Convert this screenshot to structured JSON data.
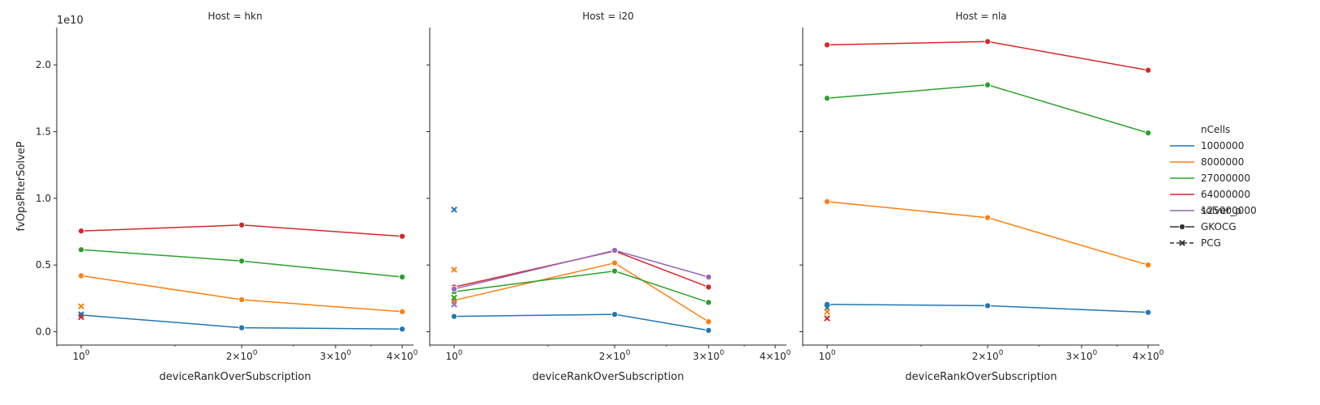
{
  "figure": {
    "y_axis_label": "fvOpsPIterSolveP",
    "y_offset_text": "1e10",
    "legend_title_hue": "nCells",
    "legend_title_style": "solver_p"
  },
  "colors": {
    "1000000": "#1f77b4",
    "8000000": "#ff7f0e",
    "27000000": "#2ca02c",
    "64000000": "#d62728",
    "125000000": "#9467bd",
    "axis": "#262626"
  },
  "legend": {
    "hue_entries": [
      "1000000",
      "8000000",
      "27000000",
      "64000000",
      "125000000"
    ],
    "style_entries": [
      "GKOCG",
      "PCG"
    ]
  },
  "chart_data": [
    {
      "type": "line",
      "title": "Host = hkn",
      "xlabel": "deviceRankOverSubscription",
      "ylabel": "fvOpsPIterSolveP",
      "x_scale": "log",
      "xlim": [
        0.9,
        4.2
      ],
      "ylim": [
        -1000000000.0,
        22800000000.0
      ],
      "x_tick_labels": [
        "10^0",
        "2×10^0",
        "3×10^0",
        "4×10^0"
      ],
      "y_tick_labels": [
        "0.0",
        "0.5",
        "1.0",
        "1.5",
        "2.0"
      ],
      "series": [
        {
          "name": "1000000",
          "marker": "GKOCG",
          "x": [
            1,
            2,
            4
          ],
          "values": [
            1250000000.0,
            300000000.0,
            200000000.0
          ]
        },
        {
          "name": "8000000",
          "marker": "GKOCG",
          "x": [
            1,
            2,
            4
          ],
          "values": [
            4200000000.0,
            2400000000.0,
            1500000000.0
          ]
        },
        {
          "name": "27000000",
          "marker": "GKOCG",
          "x": [
            1,
            2,
            4
          ],
          "values": [
            6150000000.0,
            5300000000.0,
            4100000000.0
          ]
        },
        {
          "name": "64000000",
          "marker": "GKOCG",
          "x": [
            1,
            2,
            4
          ],
          "values": [
            7550000000.0,
            8000000000.0,
            7150000000.0
          ]
        },
        {
          "name": "1000000",
          "marker": "PCG",
          "x": [
            1
          ],
          "values": [
            1300000000.0
          ]
        },
        {
          "name": "8000000",
          "marker": "PCG",
          "x": [
            1
          ],
          "values": [
            1900000000.0
          ]
        },
        {
          "name": "64000000",
          "marker": "PCG",
          "x": [
            1
          ],
          "values": [
            1100000000.0
          ]
        }
      ]
    },
    {
      "type": "line",
      "title": "Host = i20",
      "xlabel": "deviceRankOverSubscription",
      "x_scale": "log",
      "xlim": [
        0.9,
        4.2
      ],
      "ylim": [
        -1000000000.0,
        22800000000.0
      ],
      "x_tick_labels": [
        "10^0",
        "2×10^0",
        "3×10^0",
        "4×10^0"
      ],
      "series": [
        {
          "name": "1000000",
          "marker": "GKOCG",
          "x": [
            1,
            2,
            3
          ],
          "values": [
            1150000000.0,
            1300000000.0,
            100000000.0
          ]
        },
        {
          "name": "8000000",
          "marker": "GKOCG",
          "x": [
            1,
            2,
            3
          ],
          "values": [
            2350000000.0,
            5150000000.0,
            750000000.0
          ]
        },
        {
          "name": "27000000",
          "marker": "GKOCG",
          "x": [
            1,
            2,
            3
          ],
          "values": [
            3000000000.0,
            4550000000.0,
            2200000000.0
          ]
        },
        {
          "name": "64000000",
          "marker": "GKOCG",
          "x": [
            1,
            2,
            3
          ],
          "values": [
            3350000000.0,
            6050000000.0,
            3350000000.0
          ]
        },
        {
          "name": "125000000",
          "marker": "GKOCG",
          "x": [
            1,
            2,
            3
          ],
          "values": [
            3200000000.0,
            6100000000.0,
            4100000000.0
          ]
        },
        {
          "name": "1000000",
          "marker": "PCG",
          "x": [
            1
          ],
          "values": [
            9150000000.0
          ]
        },
        {
          "name": "8000000",
          "marker": "PCG",
          "x": [
            1
          ],
          "values": [
            4650000000.0
          ]
        },
        {
          "name": "27000000",
          "marker": "PCG",
          "x": [
            1
          ],
          "values": [
            2550000000.0
          ]
        },
        {
          "name": "125000000",
          "marker": "PCG",
          "x": [
            1
          ],
          "values": [
            2050000000.0
          ]
        }
      ]
    },
    {
      "type": "line",
      "title": "Host = nla",
      "xlabel": "deviceRankOverSubscription",
      "x_scale": "log",
      "xlim": [
        0.9,
        4.2
      ],
      "ylim": [
        -1000000000.0,
        22800000000.0
      ],
      "x_tick_labels": [
        "10^0",
        "2×10^0",
        "3×10^0",
        "4×10^0"
      ],
      "series": [
        {
          "name": "1000000",
          "marker": "GKOCG",
          "x": [
            1,
            2,
            4
          ],
          "values": [
            2050000000.0,
            1950000000.0,
            1450000000.0
          ]
        },
        {
          "name": "8000000",
          "marker": "GKOCG",
          "x": [
            1,
            2,
            4
          ],
          "values": [
            9750000000.0,
            8550000000.0,
            5000000000.0
          ]
        },
        {
          "name": "27000000",
          "marker": "GKOCG",
          "x": [
            1,
            2,
            4
          ],
          "values": [
            17500000000.0,
            18500000000.0,
            14900000000.0
          ]
        },
        {
          "name": "64000000",
          "marker": "GKOCG",
          "x": [
            1,
            2,
            4
          ],
          "values": [
            21500000000.0,
            21750000000.0,
            19600000000.0
          ]
        },
        {
          "name": "1000000",
          "marker": "PCG",
          "x": [
            1
          ],
          "values": [
            1800000000.0
          ]
        },
        {
          "name": "8000000",
          "marker": "PCG",
          "x": [
            1
          ],
          "values": [
            1500000000.0
          ]
        },
        {
          "name": "64000000",
          "marker": "PCG",
          "x": [
            1
          ],
          "values": [
            1000000000.0
          ]
        }
      ]
    }
  ]
}
